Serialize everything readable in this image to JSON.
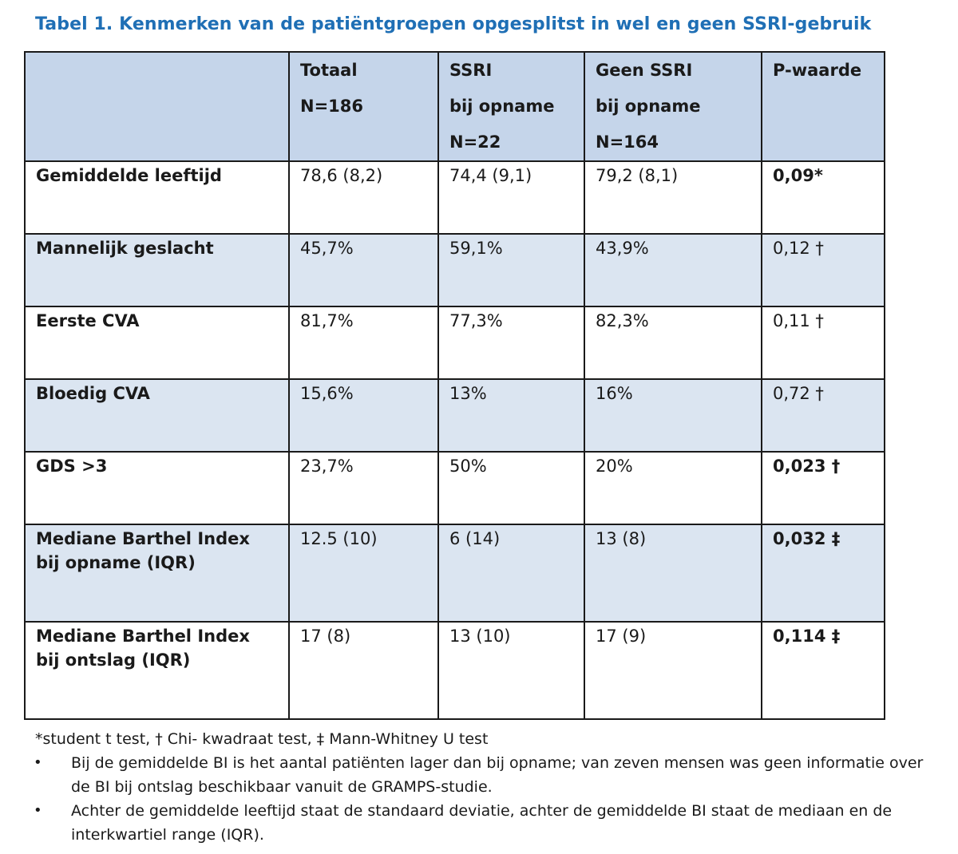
{
  "title": "Tabel 1. Kenmerken van de patiëntgroepen opgesplitst in wel en geen SSRI-gebruik",
  "table": {
    "headers": [
      [
        "",
        "",
        ""
      ],
      [
        "Totaal",
        "N=186",
        ""
      ],
      [
        "SSRI",
        "bij opname",
        "N=22"
      ],
      [
        "Geen SSRI",
        "bij opname",
        "N=164"
      ],
      [
        "P-waarde",
        "",
        ""
      ]
    ],
    "rows": [
      {
        "label": [
          "Gemiddelde leeftijd",
          ""
        ],
        "totaal": "78,6 (8,2)",
        "ssri": "74,4 (9,1)",
        "geen_ssri": "79,2 (8,1)",
        "p": "0,09*"
      },
      {
        "label": [
          "Mannelijk geslacht",
          ""
        ],
        "totaal": "45,7%",
        "ssri": "59,1%",
        "geen_ssri": "43,9%",
        "p": "0,12 †"
      },
      {
        "label": [
          "Eerste CVA",
          ""
        ],
        "totaal": "81,7%",
        "ssri": "77,3%",
        "geen_ssri": "82,3%",
        "p": "0,11 †"
      },
      {
        "label": [
          "Bloedig CVA",
          ""
        ],
        "totaal": "15,6%",
        "ssri": "13%",
        "geen_ssri": "16%",
        "p": "0,72 †"
      },
      {
        "label": [
          "GDS >3",
          ""
        ],
        "totaal": "23,7%",
        "ssri": "50%",
        "geen_ssri": "20%",
        "p": "0,023 †"
      },
      {
        "label": [
          "Mediane Barthel Index",
          "bij opname (IQR)"
        ],
        "totaal": "12.5 (10)",
        "ssri": "6 (14)",
        "geen_ssri": "13 (8)",
        "p": "0,032 ‡"
      },
      {
        "label": [
          "Mediane Barthel Index",
          "bij ontslag (IQR)"
        ],
        "totaal": "17 (8)",
        "ssri": "13 (10)",
        "geen_ssri": "17 (9)",
        "p": "0,114 ‡"
      }
    ]
  },
  "notes": {
    "footnote": "*student t test, † Chi- kwadraat test, ‡ Mann-Whitney U test",
    "bullet_symbol": "•",
    "bullets": [
      "Bij de gemiddelde BI is het aantal patiënten lager dan bij opname; van zeven mensen was geen informatie over de BI bij ontslag beschikbaar vanuit de GRAMPS-studie.",
      "Achter de gemiddelde leeftijd staat de standaard deviatie, achter de gemiddelde BI staat de mediaan en de interkwartiel range (IQR)."
    ]
  }
}
